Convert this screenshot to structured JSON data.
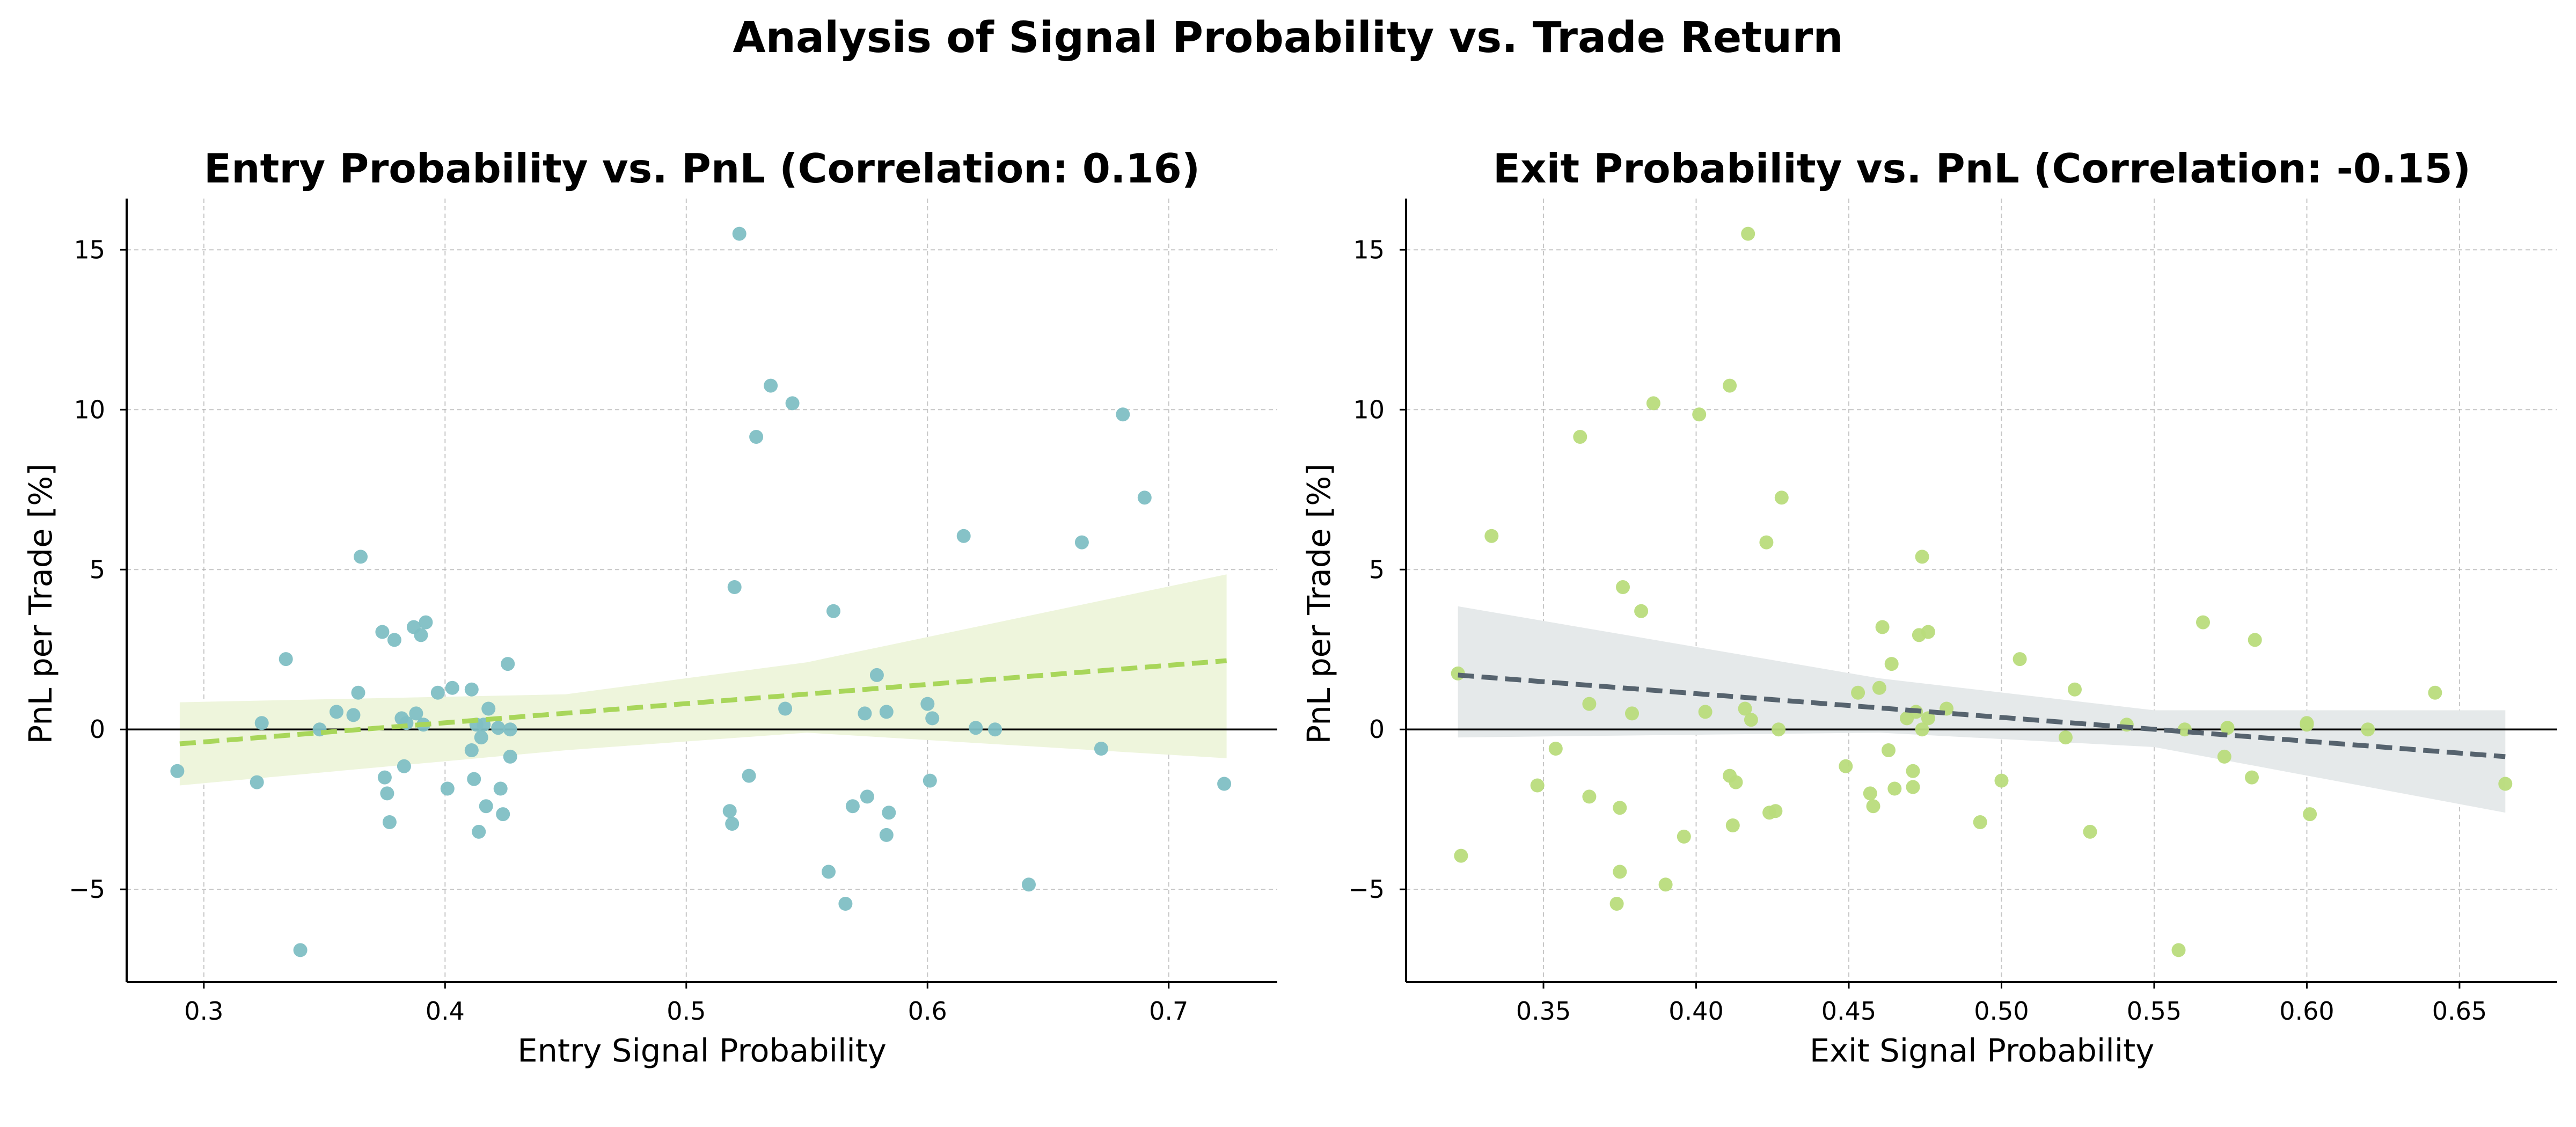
{
  "title": "Analysis of Signal Probability vs. Trade Return",
  "chart_data": [
    {
      "type": "scatter",
      "title": "Entry Probability vs. PnL (Correlation: 0.16)",
      "xlabel": "Entry Signal Probability",
      "ylabel": "PnL per Trade [%]",
      "xlim": [
        0.268,
        0.745
      ],
      "ylim": [
        -7.9,
        16.6
      ],
      "xticks": [
        0.3,
        0.4,
        0.5,
        0.6,
        0.7
      ],
      "xtick_labels": [
        "0.3",
        "0.4",
        "0.5",
        "0.6",
        "0.7"
      ],
      "yticks": [
        -5,
        0,
        5,
        10,
        15
      ],
      "ytick_labels": [
        "−5",
        "0",
        "5",
        "10",
        "15"
      ],
      "point_color": "#7fbfc4",
      "trend_color": "#a8d65a",
      "band_color": "#eef5dc",
      "zero_line": true,
      "grid": true,
      "trend": {
        "x": [
          0.29,
          0.724
        ],
        "y": [
          -0.45,
          2.15
        ]
      },
      "band": {
        "x": [
          0.29,
          0.45,
          0.55,
          0.724
        ],
        "upper": [
          0.85,
          1.1,
          2.1,
          4.85
        ],
        "lower": [
          -1.75,
          -0.65,
          -0.1,
          -0.9
        ]
      },
      "points": {
        "x": [
          0.289,
          0.322,
          0.324,
          0.334,
          0.34,
          0.348,
          0.355,
          0.362,
          0.364,
          0.365,
          0.374,
          0.375,
          0.376,
          0.377,
          0.379,
          0.382,
          0.383,
          0.384,
          0.387,
          0.388,
          0.39,
          0.391,
          0.392,
          0.397,
          0.401,
          0.403,
          0.411,
          0.411,
          0.412,
          0.413,
          0.414,
          0.415,
          0.416,
          0.417,
          0.418,
          0.422,
          0.423,
          0.424,
          0.426,
          0.427,
          0.427,
          0.518,
          0.519,
          0.52,
          0.522,
          0.526,
          0.529,
          0.535,
          0.541,
          0.544,
          0.559,
          0.561,
          0.566,
          0.569,
          0.574,
          0.575,
          0.579,
          0.583,
          0.583,
          0.584,
          0.6,
          0.601,
          0.602,
          0.615,
          0.62,
          0.628,
          0.642,
          0.664,
          0.672,
          0.681,
          0.69,
          0.723
        ],
        "y": [
          -1.3,
          -1.65,
          0.2,
          2.2,
          -6.9,
          0.0,
          0.55,
          0.45,
          1.15,
          5.4,
          3.05,
          -1.5,
          -2.0,
          -2.9,
          2.8,
          0.35,
          -1.15,
          0.2,
          3.2,
          0.5,
          2.95,
          0.15,
          3.35,
          1.15,
          -1.85,
          1.3,
          1.25,
          -0.65,
          -1.55,
          0.15,
          -3.2,
          -0.25,
          0.15,
          -2.4,
          0.65,
          0.05,
          -1.85,
          -2.65,
          2.05,
          0.0,
          -0.85,
          -2.55,
          -2.95,
          4.45,
          15.5,
          -1.45,
          9.15,
          10.75,
          0.65,
          10.2,
          -4.45,
          3.7,
          -5.45,
          -2.4,
          0.5,
          -2.1,
          1.7,
          0.55,
          -3.3,
          -2.6,
          0.8,
          -1.6,
          0.35,
          6.05,
          0.05,
          0.0,
          -4.85,
          5.85,
          -0.6,
          9.85,
          7.25,
          -1.7
        ]
      }
    },
    {
      "type": "scatter",
      "title": "Exit Probability vs. PnL (Correlation: -0.15)",
      "xlabel": "Exit Signal Probability",
      "ylabel": "PnL per Trade [%]",
      "xlim": [
        0.305,
        0.682
      ],
      "ylim": [
        -7.9,
        16.6
      ],
      "xticks": [
        0.35,
        0.4,
        0.45,
        0.5,
        0.55,
        0.6,
        0.65
      ],
      "xtick_labels": [
        "0.35",
        "0.40",
        "0.45",
        "0.50",
        "0.55",
        "0.60",
        "0.65"
      ],
      "yticks": [
        -5,
        0,
        5,
        10,
        15
      ],
      "ytick_labels": [
        "−5",
        "0",
        "5",
        "10",
        "15"
      ],
      "point_color": "#b9dc7c",
      "trend_color": "#56636e",
      "band_color": "#e5e9ea",
      "zero_line": true,
      "grid": true,
      "trend": {
        "x": [
          0.322,
          0.665
        ],
        "y": [
          1.7,
          -0.85
        ]
      },
      "band": {
        "x": [
          0.322,
          0.46,
          0.55,
          0.665
        ],
        "upper": [
          3.85,
          1.6,
          0.6,
          0.6
        ],
        "lower": [
          -0.25,
          -0.1,
          -0.55,
          -2.6
        ]
      },
      "points": {
        "x": [
          0.322,
          0.323,
          0.333,
          0.348,
          0.354,
          0.362,
          0.365,
          0.365,
          0.374,
          0.375,
          0.375,
          0.376,
          0.379,
          0.382,
          0.386,
          0.39,
          0.396,
          0.401,
          0.403,
          0.411,
          0.411,
          0.412,
          0.413,
          0.416,
          0.417,
          0.418,
          0.423,
          0.424,
          0.426,
          0.427,
          0.428,
          0.449,
          0.453,
          0.457,
          0.458,
          0.46,
          0.461,
          0.463,
          0.464,
          0.465,
          0.469,
          0.471,
          0.471,
          0.472,
          0.473,
          0.474,
          0.474,
          0.476,
          0.476,
          0.482,
          0.493,
          0.5,
          0.506,
          0.521,
          0.524,
          0.529,
          0.541,
          0.558,
          0.56,
          0.566,
          0.573,
          0.574,
          0.574,
          0.582,
          0.583,
          0.6,
          0.6,
          0.601,
          0.62,
          0.642,
          0.665
        ],
        "y": [
          1.75,
          -3.95,
          6.05,
          -1.75,
          -0.6,
          9.15,
          0.8,
          -2.1,
          -5.45,
          -4.45,
          -2.45,
          4.45,
          0.5,
          3.7,
          10.2,
          -4.85,
          -3.35,
          9.85,
          0.55,
          10.75,
          -1.45,
          -3.0,
          -1.65,
          0.65,
          15.5,
          0.3,
          5.85,
          -2.6,
          -2.55,
          0.0,
          7.25,
          -1.15,
          1.15,
          -2.0,
          -2.4,
          1.3,
          3.2,
          -0.65,
          2.05,
          -1.85,
          0.35,
          -1.3,
          -1.8,
          0.55,
          2.95,
          5.4,
          0.0,
          3.05,
          0.35,
          0.65,
          -2.9,
          -1.6,
          2.2,
          -0.25,
          1.25,
          -3.2,
          0.15,
          -6.9,
          0.0,
          3.35,
          -0.85,
          0.05,
          0.05,
          -1.5,
          2.8,
          0.2,
          0.15,
          -2.65,
          0.0,
          1.15,
          -1.7
        ]
      }
    }
  ]
}
